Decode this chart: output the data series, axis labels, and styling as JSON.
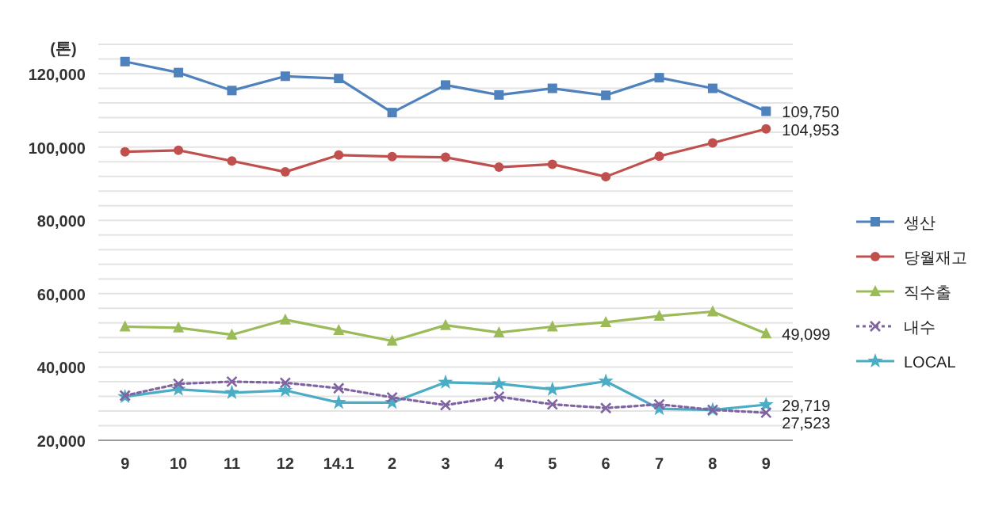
{
  "chart_data": {
    "type": "line",
    "ylabel": "(톤)",
    "categories": [
      "9",
      "10",
      "11",
      "12",
      "14.1",
      "2",
      "3",
      "4",
      "5",
      "6",
      "7",
      "8",
      "9"
    ],
    "ylim": [
      20000,
      128000
    ],
    "yticks": [
      {
        "value": 20000,
        "label": "20,000"
      },
      {
        "value": 24000,
        "label": null
      },
      {
        "value": 28000,
        "label": null
      },
      {
        "value": 32000,
        "label": null
      },
      {
        "value": 36000,
        "label": null
      },
      {
        "value": 40000,
        "label": "40,000"
      },
      {
        "value": 44000,
        "label": null
      },
      {
        "value": 48000,
        "label": null
      },
      {
        "value": 52000,
        "label": null
      },
      {
        "value": 56000,
        "label": null
      },
      {
        "value": 60000,
        "label": "60,000"
      },
      {
        "value": 64000,
        "label": null
      },
      {
        "value": 68000,
        "label": null
      },
      {
        "value": 72000,
        "label": null
      },
      {
        "value": 76000,
        "label": null
      },
      {
        "value": 80000,
        "label": "80,000"
      },
      {
        "value": 84000,
        "label": null
      },
      {
        "value": 88000,
        "label": null
      },
      {
        "value": 92000,
        "label": null
      },
      {
        "value": 96000,
        "label": null
      },
      {
        "value": 100000,
        "label": "100,000"
      },
      {
        "value": 104000,
        "label": null
      },
      {
        "value": 108000,
        "label": null
      },
      {
        "value": 112000,
        "label": null
      },
      {
        "value": 116000,
        "label": null
      },
      {
        "value": 120000,
        "label": "120,000"
      },
      {
        "value": 124000,
        "label": null
      },
      {
        "value": 128000,
        "label": null
      }
    ],
    "grid": "y",
    "legend": "right",
    "series": [
      {
        "name": "생산",
        "color": "#4f81bd",
        "marker": "square",
        "line_style": "solid",
        "values": [
          123300,
          120300,
          115400,
          119300,
          118700,
          109400,
          116900,
          114200,
          116000,
          114100,
          118900,
          116000,
          109750
        ],
        "value_labels": [
          null,
          null,
          null,
          null,
          null,
          null,
          null,
          null,
          null,
          null,
          null,
          null,
          "109,750"
        ]
      },
      {
        "name": "당월재고",
        "color": "#c0504d",
        "marker": "circle",
        "line_style": "solid",
        "values": [
          98700,
          99100,
          96200,
          93200,
          97800,
          97400,
          97200,
          94500,
          95300,
          91900,
          97500,
          101100,
          104953
        ],
        "value_labels": [
          null,
          null,
          null,
          null,
          null,
          null,
          null,
          null,
          null,
          null,
          null,
          null,
          "104,953"
        ]
      },
      {
        "name": "직수출",
        "color": "#9bbb59",
        "marker": "triangle",
        "line_style": "solid",
        "values": [
          51000,
          50700,
          48800,
          52900,
          50000,
          47100,
          51400,
          49400,
          51000,
          52200,
          53900,
          55100,
          49099
        ],
        "value_labels": [
          null,
          null,
          null,
          null,
          null,
          null,
          null,
          null,
          null,
          null,
          null,
          null,
          "49,099"
        ]
      },
      {
        "name": "내수",
        "color": "#8064a2",
        "marker": "cross",
        "line_style": "dotted",
        "values": [
          32200,
          35400,
          36000,
          35700,
          34200,
          31700,
          29600,
          31900,
          29800,
          28800,
          29800,
          28300,
          27523
        ],
        "value_labels": [
          null,
          null,
          null,
          null,
          null,
          null,
          null,
          null,
          null,
          null,
          null,
          null,
          "27,523"
        ]
      },
      {
        "name": "LOCAL",
        "color": "#4bacc6",
        "marker": "star",
        "line_style": "solid",
        "values": [
          31900,
          33900,
          33000,
          33600,
          30300,
          30300,
          35800,
          35400,
          33900,
          36100,
          28600,
          28300,
          29719
        ],
        "value_labels": [
          null,
          null,
          null,
          null,
          null,
          null,
          null,
          null,
          null,
          null,
          null,
          null,
          "29,719"
        ]
      }
    ]
  }
}
